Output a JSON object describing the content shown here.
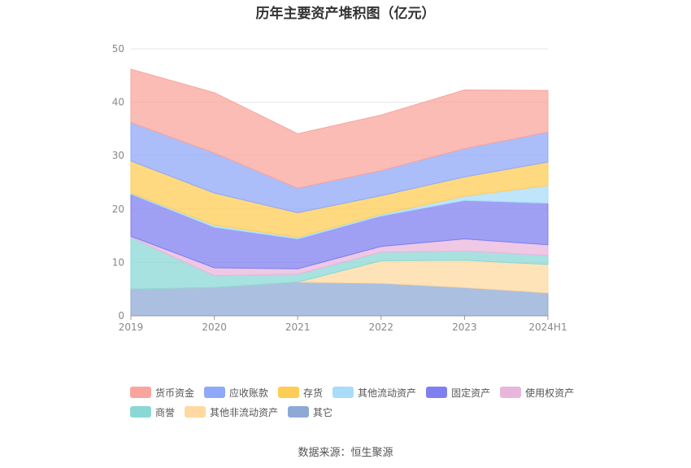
{
  "chart_data": {
    "type": "area",
    "title": "历年主要资产堆积图（亿元）",
    "categories": [
      "2019",
      "2020",
      "2021",
      "2022",
      "2023",
      "2024H1"
    ],
    "ylim": [
      0,
      50
    ],
    "yticks": [
      0,
      10,
      20,
      30,
      40,
      50
    ],
    "grid": true,
    "stacked": true,
    "legend_position": "bottom",
    "series": [
      {
        "name": "其它",
        "color": "#8fa9d6",
        "values": [
          5.0,
          5.3,
          6.3,
          6.1,
          5.3,
          4.3
        ]
      },
      {
        "name": "其他非流动资产",
        "color": "#ffd9a0",
        "values": [
          0.0,
          0.0,
          0.0,
          4.2,
          5.1,
          5.3
        ]
      },
      {
        "name": "商誉",
        "color": "#8ad8d5",
        "values": [
          9.7,
          2.2,
          1.5,
          1.6,
          1.7,
          1.7
        ]
      },
      {
        "name": "使用权资产",
        "color": "#e8b6dc",
        "values": [
          0.2,
          1.5,
          1.0,
          1.1,
          2.3,
          2.0
        ]
      },
      {
        "name": "固定资产",
        "color": "#7f7ff0",
        "values": [
          7.9,
          7.6,
          5.6,
          5.7,
          7.2,
          7.8
        ]
      },
      {
        "name": "其他流动资产",
        "color": "#a9dcf8",
        "values": [
          0.2,
          0.4,
          0.3,
          0.3,
          0.8,
          3.3
        ]
      },
      {
        "name": "存货",
        "color": "#ffcc55",
        "values": [
          6.0,
          6.0,
          4.6,
          3.5,
          3.6,
          4.4
        ]
      },
      {
        "name": "应收账款",
        "color": "#8fa8f8",
        "values": [
          7.2,
          7.5,
          4.6,
          4.7,
          5.3,
          5.6
        ]
      },
      {
        "name": "货币资金",
        "color": "#f9a59d",
        "values": [
          10.0,
          11.3,
          10.2,
          10.4,
          11.0,
          7.8
        ]
      }
    ]
  },
  "legend": {
    "row1": [
      {
        "label": "货币资金",
        "color": "#f9a59d"
      },
      {
        "label": "应收账款",
        "color": "#8fa8f8"
      },
      {
        "label": "存货",
        "color": "#ffcc55"
      },
      {
        "label": "其他流动资产",
        "color": "#a9dcf8"
      },
      {
        "label": "固定资产",
        "color": "#7f7ff0"
      },
      {
        "label": "使用权资产",
        "color": "#e8b6dc"
      }
    ],
    "row2": [
      {
        "label": "商誉",
        "color": "#8ad8d5"
      },
      {
        "label": "其他非流动资产",
        "color": "#ffd9a0"
      },
      {
        "label": "其它",
        "color": "#8fa9d6"
      }
    ]
  },
  "source_note": "数据来源：恒生聚源"
}
